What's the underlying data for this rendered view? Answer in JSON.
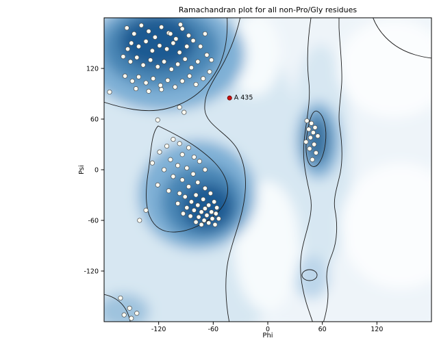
{
  "chart_data": {
    "type": "scatter",
    "title": "Ramachandran plot for all non-Pro/Gly residues",
    "xlabel": "Phi",
    "ylabel": "Psi",
    "xlim": [
      -180,
      180
    ],
    "ylim": [
      -180,
      180
    ],
    "x_ticks": [
      -120,
      -60,
      0,
      60,
      120
    ],
    "y_ticks": [
      120,
      60,
      0,
      -60,
      -120
    ],
    "grid": false,
    "legend": null,
    "series_name": "non-Pro/Gly residues",
    "points": [
      [
        -155,
        168
      ],
      [
        -147,
        161
      ],
      [
        -139,
        171
      ],
      [
        -131,
        164
      ],
      [
        -124,
        157
      ],
      [
        -117,
        169
      ],
      [
        -109,
        162
      ],
      [
        -101,
        155
      ],
      [
        -94,
        167
      ],
      [
        -87,
        159
      ],
      [
        -150,
        150
      ],
      [
        -142,
        146
      ],
      [
        -134,
        152
      ],
      [
        -127,
        141
      ],
      [
        -119,
        147
      ],
      [
        -111,
        143
      ],
      [
        -104,
        150
      ],
      [
        -97,
        139
      ],
      [
        -89,
        146
      ],
      [
        -82,
        153
      ],
      [
        -159,
        134
      ],
      [
        -151,
        128
      ],
      [
        -144,
        133
      ],
      [
        -137,
        124
      ],
      [
        -129,
        130
      ],
      [
        -121,
        122
      ],
      [
        -114,
        128
      ],
      [
        -106,
        119
      ],
      [
        -99,
        125
      ],
      [
        -91,
        131
      ],
      [
        -84,
        121
      ],
      [
        -77,
        128
      ],
      [
        -157,
        111
      ],
      [
        -149,
        105
      ],
      [
        -142,
        110
      ],
      [
        -134,
        103
      ],
      [
        -126,
        108
      ],
      [
        -118,
        100
      ],
      [
        -110,
        106
      ],
      [
        -102,
        98
      ],
      [
        -94,
        105
      ],
      [
        -86,
        111
      ],
      [
        -79,
        101
      ],
      [
        -71,
        108
      ],
      [
        -64,
        116
      ],
      [
        -67,
        136
      ],
      [
        -74,
        146
      ],
      [
        -69,
        161
      ],
      [
        -62,
        130
      ],
      [
        -145,
        96
      ],
      [
        -131,
        93
      ],
      [
        -117,
        95
      ],
      [
        -154,
        143
      ],
      [
        -107,
        161
      ],
      [
        -96,
        172
      ],
      [
        -104,
        36
      ],
      [
        -97,
        31
      ],
      [
        -111,
        28
      ],
      [
        -87,
        26
      ],
      [
        -119,
        21
      ],
      [
        -94,
        18
      ],
      [
        -81,
        15
      ],
      [
        -107,
        12
      ],
      [
        -75,
        10
      ],
      [
        -127,
        8
      ],
      [
        -99,
        5
      ],
      [
        -89,
        2
      ],
      [
        -114,
        0
      ],
      [
        -69,
        0
      ],
      [
        -82,
        -5
      ],
      [
        -104,
        -8
      ],
      [
        -94,
        -12
      ],
      [
        -77,
        -15
      ],
      [
        -121,
        -18
      ],
      [
        -87,
        -20
      ],
      [
        -69,
        -22
      ],
      [
        -109,
        -25
      ],
      [
        -97,
        -28
      ],
      [
        -63,
        -28
      ],
      [
        -79,
        -30
      ],
      [
        -91,
        -32
      ],
      [
        -71,
        -35
      ],
      [
        -84,
        -38
      ],
      [
        -59,
        -38
      ],
      [
        -99,
        -40
      ],
      [
        -65,
        -42
      ],
      [
        -77,
        -42
      ],
      [
        -89,
        -45
      ],
      [
        -56,
        -45
      ],
      [
        -69,
        -46
      ],
      [
        -81,
        -48
      ],
      [
        -62,
        -50
      ],
      [
        -73,
        -50
      ],
      [
        -93,
        -52
      ],
      [
        -57,
        -52
      ],
      [
        -67,
        -54
      ],
      [
        -85,
        -55
      ],
      [
        -76,
        -56
      ],
      [
        -61,
        -58
      ],
      [
        -70,
        -60
      ],
      [
        -54,
        -58
      ],
      [
        -79,
        -62
      ],
      [
        -65,
        -63
      ],
      [
        -58,
        -65
      ],
      [
        -73,
        -65
      ],
      [
        -134,
        -48
      ],
      [
        -141,
        -60
      ],
      [
        43,
        58
      ],
      [
        48,
        55
      ],
      [
        52,
        50
      ],
      [
        45,
        48
      ],
      [
        50,
        44
      ],
      [
        55,
        40
      ],
      [
        47,
        38
      ],
      [
        42,
        33
      ],
      [
        51,
        30
      ],
      [
        46,
        25
      ],
      [
        53,
        20
      ],
      [
        49,
        12
      ],
      [
        -174,
        92
      ],
      [
        -97,
        74
      ],
      [
        -92,
        68
      ],
      [
        -121,
        59
      ],
      [
        -162,
        -152
      ],
      [
        -158,
        -172
      ],
      [
        -150,
        -176
      ],
      [
        -144,
        -170
      ],
      [
        -152,
        -164
      ]
    ],
    "highlight_point": {
      "label": "A 435",
      "phi": -42,
      "psi": 85
    }
  },
  "colors": {
    "background_tint": "#eef4f9",
    "density_light": "#8fb8d9",
    "density_mid": "#4a86b5",
    "density_dark": "#1c5a92",
    "contour": "#1a1a1a",
    "point_fill": "#fdfcf3",
    "point_stroke": "#4a4a4a",
    "highlight": "#cc1111",
    "highlight_stroke": "#5a0000"
  }
}
